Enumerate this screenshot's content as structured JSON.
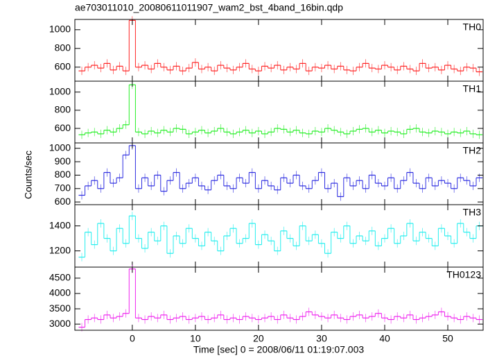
{
  "title": "ae703011010_20080611011907_wam2_bst_4band_16bin.qdp",
  "xlabel": "Time [sec] 0 = 2008/06/11 01:19:07.003",
  "ylabel": "Counts/sec",
  "xlim": [
    -9.1,
    55.6
  ],
  "xticks": [
    0,
    10,
    20,
    30,
    40,
    50
  ],
  "x": [
    -8,
    -7,
    -6,
    -5,
    -4,
    -3,
    -2,
    -1,
    0,
    1,
    2,
    3,
    4,
    5,
    6,
    7,
    8,
    9,
    10,
    11,
    12,
    13,
    14,
    15,
    16,
    17,
    18,
    19,
    20,
    21,
    22,
    23,
    24,
    25,
    26,
    27,
    28,
    29,
    30,
    31,
    32,
    33,
    34,
    35,
    36,
    37,
    38,
    39,
    40,
    41,
    42,
    43,
    44,
    45,
    46,
    47,
    48,
    49,
    50,
    51,
    52,
    53,
    54,
    55
  ],
  "chart_data": [
    {
      "type": "line",
      "ylim": [
        450,
        1110
      ],
      "yticks": [
        600,
        800,
        1000
      ],
      "series": [
        {
          "name": "TH0",
          "color": "#ff2020",
          "values": [
            560,
            600,
            620,
            590,
            640,
            570,
            610,
            560,
            1100,
            600,
            620,
            580,
            640,
            600,
            570,
            610,
            560,
            590,
            650,
            580,
            600,
            560,
            620,
            590,
            570,
            600,
            640,
            580,
            560,
            610,
            590,
            620,
            570,
            600,
            580,
            640,
            560,
            600,
            590,
            620,
            580,
            610,
            570,
            560,
            600,
            640,
            590,
            580,
            620,
            600,
            570,
            610,
            580,
            560,
            640,
            590,
            600,
            570,
            620,
            580,
            560,
            600,
            590,
            550
          ]
        }
      ]
    },
    {
      "type": "line",
      "ylim": [
        440,
        1120
      ],
      "yticks": [
        600,
        800,
        1000
      ],
      "series": [
        {
          "name": "TH1",
          "color": "#22ee22",
          "values": [
            530,
            550,
            560,
            540,
            580,
            560,
            600,
            640,
            1080,
            560,
            540,
            570,
            550,
            580,
            560,
            600,
            590,
            540,
            560,
            580,
            550,
            570,
            600,
            560,
            540,
            560,
            580,
            550,
            570,
            540,
            560,
            600,
            590,
            560,
            580,
            550,
            540,
            570,
            560,
            600,
            580,
            560,
            540,
            570,
            590,
            600,
            560,
            580,
            550,
            570,
            560,
            540,
            590,
            600,
            560,
            550,
            570,
            560,
            540,
            560,
            550,
            570,
            540,
            530
          ]
        }
      ]
    },
    {
      "type": "line",
      "ylim": [
        580,
        1040
      ],
      "yticks": [
        600,
        700,
        800,
        900,
        1000
      ],
      "series": [
        {
          "name": "TH2",
          "color": "#2a2ae0",
          "values": [
            650,
            720,
            760,
            700,
            820,
            740,
            780,
            950,
            1020,
            700,
            780,
            720,
            800,
            680,
            760,
            820,
            700,
            740,
            780,
            720,
            690,
            760,
            800,
            720,
            700,
            780,
            740,
            820,
            700,
            760,
            720,
            690,
            780,
            740,
            800,
            720,
            700,
            760,
            820,
            700,
            740,
            640,
            780,
            720,
            760,
            700,
            800,
            740,
            720,
            780,
            700,
            760,
            820,
            740,
            700,
            780,
            720,
            760,
            740,
            700,
            780,
            760,
            720,
            780
          ]
        }
      ]
    },
    {
      "type": "line",
      "ylim": [
        1070,
        1570
      ],
      "yticks": [
        1200,
        1400
      ],
      "series": [
        {
          "name": "TH3",
          "color": "#22eeee",
          "values": [
            1150,
            1350,
            1250,
            1420,
            1300,
            1200,
            1380,
            1260,
            1480,
            1300,
            1220,
            1350,
            1280,
            1400,
            1180,
            1320,
            1260,
            1380,
            1300,
            1240,
            1350,
            1280,
            1200,
            1320,
            1380,
            1260,
            1300,
            1420,
            1250,
            1330,
            1280,
            1200,
            1360,
            1300,
            1240,
            1400,
            1280,
            1330,
            1260,
            1180,
            1350,
            1300,
            1400,
            1260,
            1320,
            1280,
            1360,
            1240,
            1300,
            1380,
            1260,
            1320,
            1420,
            1280,
            1350,
            1300,
            1240,
            1380,
            1320,
            1260,
            1420,
            1350,
            1300,
            1400
          ]
        }
      ]
    },
    {
      "type": "line",
      "ylim": [
        2800,
        4860
      ],
      "yticks": [
        3000,
        3500,
        4000,
        4500
      ],
      "series": [
        {
          "name": "TH0123",
          "color": "#ee22ee",
          "values": [
            2900,
            3150,
            3200,
            3150,
            3300,
            3200,
            3250,
            3350,
            4800,
            3200,
            3150,
            3250,
            3200,
            3300,
            3150,
            3200,
            3250,
            3150,
            3200,
            3250,
            3150,
            3200,
            3300,
            3150,
            3200,
            3150,
            3250,
            3200,
            3150,
            3200,
            3250,
            3150,
            3300,
            3200,
            3150,
            3250,
            3400,
            3300,
            3250,
            3200,
            3300,
            3200,
            3150,
            3250,
            3300,
            3200,
            3250,
            3350,
            3200,
            3150,
            3250,
            3200,
            3300,
            3150,
            3200,
            3250,
            3300,
            3400,
            3250,
            3200,
            3150,
            3250,
            3200,
            3150
          ]
        }
      ]
    }
  ]
}
